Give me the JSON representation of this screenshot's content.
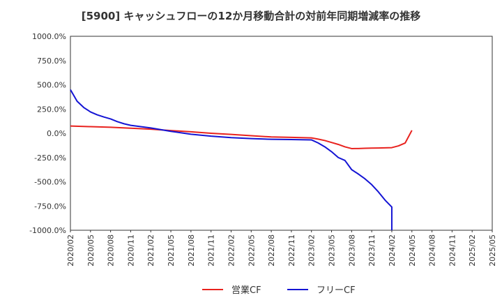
{
  "chart_data": {
    "type": "line",
    "title": "[5900]  キャッシュフローの12か月移動合計の対前年同期増減率の推移",
    "xlabel": "",
    "ylabel": "",
    "ylim": [
      -1000,
      1000
    ],
    "yticks": [
      1000,
      750,
      500,
      250,
      0,
      -250,
      -500,
      -750,
      -1000
    ],
    "ytick_labels": [
      "1000.0%",
      "750.0%",
      "500.0%",
      "250.0%",
      "0.0%",
      "-250.0%",
      "-500.0%",
      "-750.0%",
      "-1000.0%"
    ],
    "xticks": [
      "2020/02",
      "2020/05",
      "2020/08",
      "2020/11",
      "2021/02",
      "2021/05",
      "2021/08",
      "2021/11",
      "2022/02",
      "2022/05",
      "2022/08",
      "2022/11",
      "2023/02",
      "2023/05",
      "2023/08",
      "2023/11",
      "2024/02",
      "2024/05",
      "2024/08",
      "2024/11",
      "2025/02",
      "2025/05"
    ],
    "grid": true,
    "legend_position": "bottom-center",
    "series": [
      {
        "name": "営業CF",
        "color": "#e8221e",
        "x": [
          "2020/02",
          "2020/05",
          "2020/08",
          "2020/11",
          "2021/02",
          "2021/05",
          "2021/08",
          "2021/11",
          "2022/02",
          "2022/05",
          "2022/08",
          "2022/11",
          "2023/02",
          "2023/03",
          "2023/04",
          "2023/05",
          "2023/06",
          "2023/07",
          "2023/08",
          "2023/09",
          "2023/10",
          "2023/11",
          "2023/12",
          "2024/01",
          "2024/02",
          "2024/03",
          "2024/04",
          "2024/05"
        ],
        "values": [
          75,
          68,
          62,
          52,
          42,
          28,
          15,
          0,
          -12,
          -25,
          -38,
          -42,
          -48,
          -60,
          -75,
          -95,
          -115,
          -140,
          -158,
          -157,
          -155,
          -153,
          -152,
          -150,
          -148,
          -130,
          -100,
          30
        ]
      },
      {
        "name": "フリーCF",
        "color": "#1414d4",
        "x": [
          "2020/02",
          "2020/03",
          "2020/04",
          "2020/05",
          "2020/06",
          "2020/07",
          "2020/08",
          "2020/09",
          "2020/10",
          "2020/11",
          "2021/02",
          "2021/05",
          "2021/08",
          "2021/11",
          "2022/02",
          "2022/05",
          "2022/08",
          "2022/11",
          "2023/02",
          "2023/03",
          "2023/04",
          "2023/05",
          "2023/06",
          "2023/07",
          "2023/08",
          "2023/09",
          "2023/10",
          "2023/11",
          "2023/12",
          "2024/01",
          "2024/02",
          "2024/02"
        ],
        "values": [
          450,
          330,
          265,
          220,
          190,
          168,
          148,
          120,
          98,
          82,
          55,
          20,
          -10,
          -30,
          -45,
          -55,
          -62,
          -65,
          -68,
          -100,
          -140,
          -190,
          -250,
          -280,
          -375,
          -420,
          -470,
          -530,
          -605,
          -690,
          -760,
          -1000
        ]
      }
    ]
  }
}
